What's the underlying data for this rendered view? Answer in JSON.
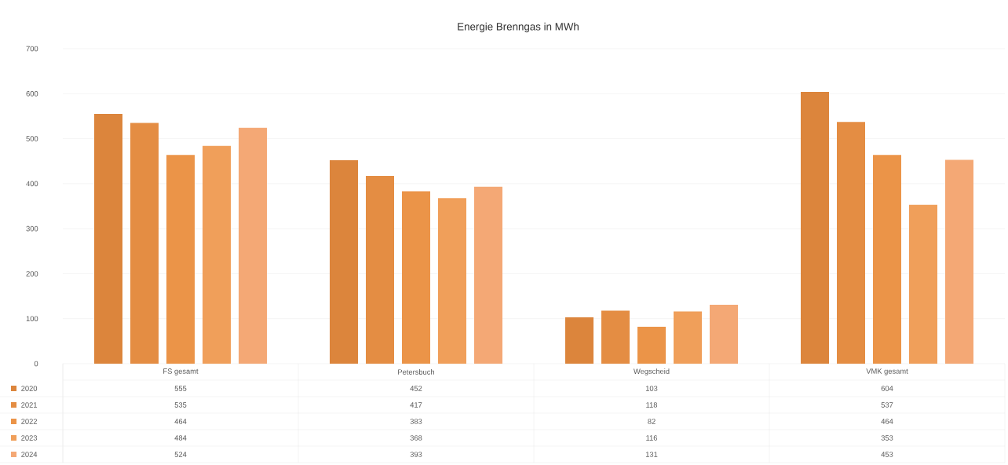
{
  "chart_data": {
    "type": "bar",
    "title": "Energie Brenngas in MWh",
    "categories": [
      "FS gesamt",
      "Petersbuch",
      "Wegscheid",
      "VMK gesamt"
    ],
    "series": [
      {
        "name": "2020",
        "color": "#dc853c",
        "values": [
          555,
          452,
          103,
          604
        ]
      },
      {
        "name": "2021",
        "color": "#e48d43",
        "values": [
          535,
          417,
          118,
          537
        ]
      },
      {
        "name": "2022",
        "color": "#eb9448",
        "values": [
          464,
          383,
          82,
          464
        ]
      },
      {
        "name": "2023",
        "color": "#f09f5a",
        "values": [
          484,
          368,
          116,
          353
        ]
      },
      {
        "name": "2024",
        "color": "#f4a875",
        "values": [
          524,
          393,
          131,
          453
        ]
      }
    ],
    "ylim": [
      0,
      700
    ],
    "yticks": [
      0,
      100,
      200,
      300,
      400,
      500,
      600,
      700
    ],
    "grid": "y",
    "legend": "bottom left",
    "data_labels": true
  }
}
